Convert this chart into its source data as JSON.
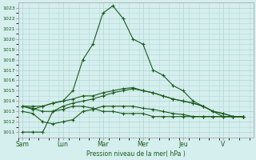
{
  "xlabel": "Pression niveau de la mer( hPa )",
  "background_color": "#d5eeee",
  "grid_color": "#b8d8d8",
  "line_color": "#1a5c1a",
  "yticks": [
    1011,
    1012,
    1013,
    1014,
    1015,
    1016,
    1017,
    1018,
    1019,
    1020,
    1021,
    1022,
    1023
  ],
  "ylim": [
    1010.5,
    1023.5
  ],
  "day_labels": [
    "Sam",
    "Lun",
    "Mar",
    "Mer",
    "Jeu",
    "V"
  ],
  "series": [
    {
      "x": [
        0,
        0.5,
        1,
        1.5,
        2,
        2.5,
        3,
        3.5,
        4,
        4.5,
        5,
        5.5,
        6,
        6.5,
        7,
        7.5,
        8,
        8.5,
        9,
        9.5,
        10,
        10.5,
        11
      ],
      "y": [
        1011,
        1011,
        1011,
        1013,
        1013.5,
        1013.8,
        1014,
        1014.2,
        1014.5,
        1014.8,
        1015,
        1015.2,
        1015,
        1014.8,
        1014.5,
        1014.2,
        1014,
        1013.8,
        1013.5,
        1013,
        1012.8,
        1012.5,
        1012.5
      ]
    },
    {
      "x": [
        0,
        0.5,
        1,
        1.5,
        2,
        2.5,
        3,
        3.5,
        4,
        4.5,
        5,
        5.5,
        6,
        6.5,
        7,
        7.5,
        8,
        8.5,
        9,
        9.5,
        10,
        10.5,
        11
      ],
      "y": [
        1013,
        1012.8,
        1012,
        1011.8,
        1012,
        1012.2,
        1013,
        1013.2,
        1013.5,
        1013.5,
        1013.5,
        1013.5,
        1013.3,
        1013.2,
        1013,
        1012.8,
        1012.7,
        1012.5,
        1012.5,
        1012.5,
        1012.5,
        1012.5,
        1012.5
      ]
    },
    {
      "x": [
        0,
        0.5,
        1,
        1.5,
        2,
        2.5,
        3,
        3.5,
        4,
        4.5,
        5,
        5.5,
        6,
        6.5,
        7,
        7.5,
        8,
        8.5,
        9,
        9.5,
        10,
        10.5,
        11
      ],
      "y": [
        1013.5,
        1013.2,
        1013.5,
        1013.8,
        1014,
        1015,
        1018,
        1019.5,
        1022.5,
        1023.2,
        1022,
        1020,
        1019.5,
        1017,
        1016.5,
        1015.5,
        1015,
        1014,
        1013.5,
        1013,
        1012.5,
        1012.5,
        1012.5
      ]
    },
    {
      "x": [
        0,
        0.5,
        1,
        1.5,
        2,
        2.5,
        3,
        3.5,
        4,
        4.5,
        5,
        5.5,
        6,
        6.5,
        7,
        7.5,
        8,
        8.5,
        9,
        9.5,
        10,
        10.5,
        11
      ],
      "y": [
        1013.5,
        1013.5,
        1013.5,
        1013.8,
        1014,
        1014.2,
        1014.5,
        1014.5,
        1014.8,
        1015,
        1015.2,
        1015.3,
        1015,
        1014.8,
        1014.5,
        1014.2,
        1014,
        1013.8,
        1013.5,
        1013,
        1012.8,
        1012.5,
        1012.5
      ]
    },
    {
      "x": [
        0,
        0.5,
        1,
        1.5,
        2,
        2.5,
        3,
        3.5,
        4,
        4.5,
        5,
        5.5,
        6,
        6.5,
        7,
        7.5,
        8,
        8.5,
        9,
        9.5,
        10,
        10.5,
        11
      ],
      "y": [
        1013.5,
        1013.3,
        1013,
        1013,
        1013.2,
        1013.5,
        1013.5,
        1013.3,
        1013,
        1013,
        1012.8,
        1012.8,
        1012.8,
        1012.5,
        1012.5,
        1012.5,
        1012.5,
        1012.5,
        1012.5,
        1012.5,
        1012.5,
        1012.5,
        1012.5
      ]
    }
  ],
  "xtick_positions": [
    0,
    2,
    4,
    6,
    8,
    10
  ],
  "xlim": [
    -0.2,
    11.5
  ]
}
